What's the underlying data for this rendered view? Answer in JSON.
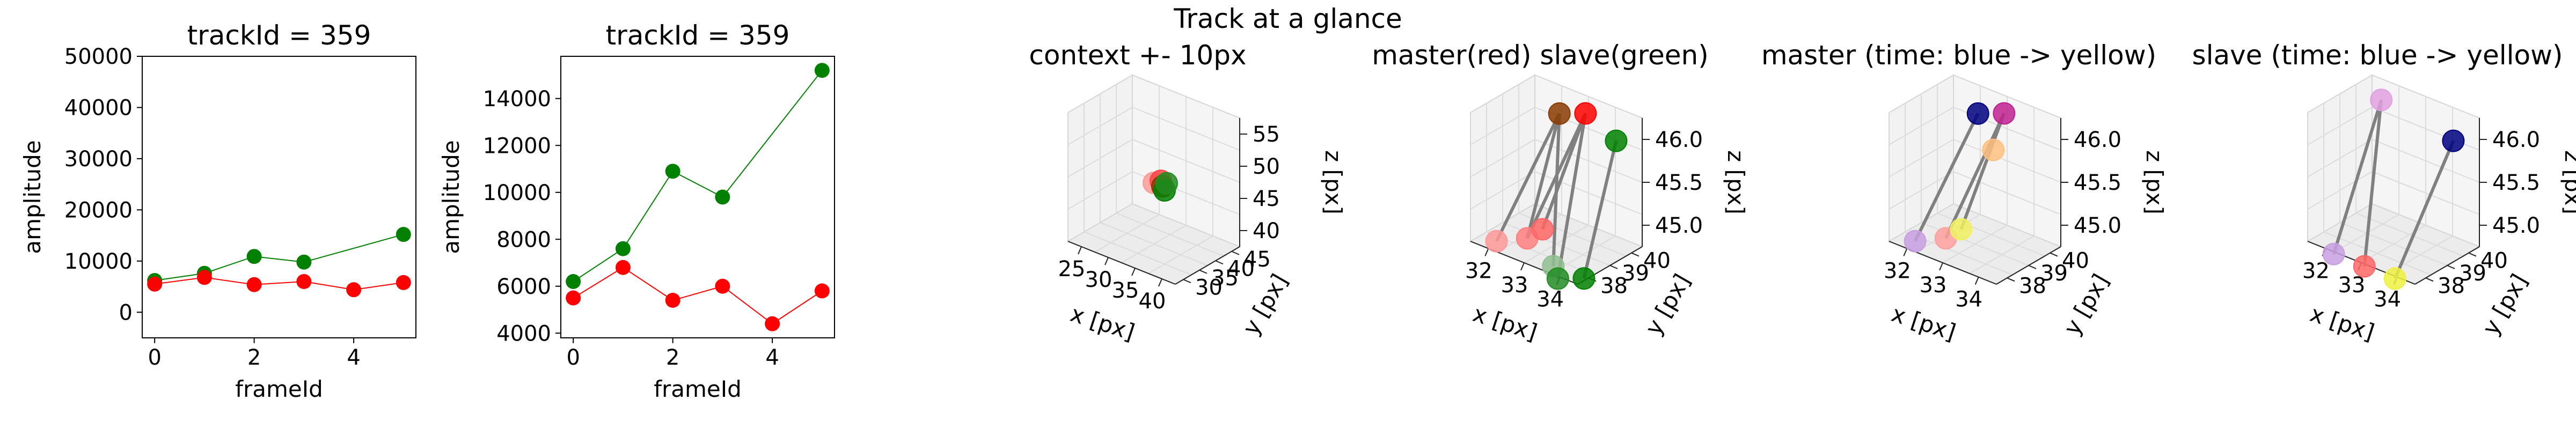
{
  "figure": {
    "suptitle": "Track at a glance"
  },
  "chart_data": [
    {
      "type": "line",
      "title": "trackId = 359",
      "xlabel": "frameId",
      "ylabel": "amplitude",
      "xlim": [
        -0.25,
        5.25
      ],
      "ylim": [
        -5000,
        50000
      ],
      "xticks": [
        "0",
        "2",
        "4"
      ],
      "yticks": [
        "0",
        "10000",
        "20000",
        "30000",
        "40000",
        "50000"
      ],
      "series": [
        {
          "color": "#008000",
          "x": [
            0,
            1,
            2,
            3,
            5
          ],
          "y": [
            6200,
            7600,
            10900,
            9800,
            15200
          ]
        },
        {
          "color": "#ff0000",
          "x": [
            0,
            1,
            2,
            3,
            4,
            5
          ],
          "y": [
            5500,
            6800,
            5400,
            6000,
            4400,
            5800
          ]
        }
      ]
    },
    {
      "type": "line",
      "title": "trackId = 359",
      "xlabel": "frameId",
      "ylabel": "amplitude",
      "xlim": [
        -0.25,
        5.25
      ],
      "ylim": [
        3800,
        15800
      ],
      "xticks": [
        "0",
        "2",
        "4"
      ],
      "yticks": [
        "4000",
        "6000",
        "8000",
        "10000",
        "12000",
        "14000"
      ],
      "series": [
        {
          "color": "#008000",
          "x": [
            0,
            1,
            2,
            3,
            5
          ],
          "y": [
            6200,
            7600,
            10900,
            9800,
            15200
          ]
        },
        {
          "color": "#ff0000",
          "x": [
            0,
            1,
            2,
            3,
            4,
            5
          ],
          "y": [
            5500,
            6800,
            5400,
            6000,
            4400,
            5800
          ]
        }
      ]
    },
    {
      "type": "scatter",
      "title": "context +- 10px",
      "xlabel": "x [px]",
      "ylabel": "y [px]",
      "zlabel": "z [px]",
      "xlim": [
        22,
        42
      ],
      "ylim": [
        28,
        48
      ],
      "zlim": [
        36,
        56
      ],
      "xticks": [
        "25",
        "30",
        "35",
        "40"
      ],
      "yticks": [
        "30",
        "35",
        "40",
        "45"
      ],
      "zticks": [
        "40",
        "45",
        "50",
        "55"
      ],
      "points": [
        {
          "x": 32,
          "y": 38,
          "z": 45.5,
          "color": "#ff9999"
        },
        {
          "x": 33,
          "y": 38.5,
          "z": 46,
          "color": "#ff4444"
        },
        {
          "x": 33,
          "y": 39,
          "z": 45,
          "color": "#8b3a00"
        },
        {
          "x": 34,
          "y": 38,
          "z": 45,
          "color": "#008000"
        },
        {
          "x": 33.5,
          "y": 39.5,
          "z": 45.5,
          "color": "#228b22"
        }
      ]
    },
    {
      "type": "scatter",
      "title": "master(red) slave(green)",
      "xlabel": "x [px]",
      "ylabel": "y [px]",
      "zlabel": "z [px]",
      "xlim": [
        31.5,
        35
      ],
      "ylim": [
        37.5,
        40.5
      ],
      "zlim": [
        44.6,
        46.3
      ],
      "xticks": [
        "32",
        "33",
        "34"
      ],
      "yticks": [
        "38",
        "39",
        "40"
      ],
      "zticks": [
        "45.0",
        "45.5",
        "46.0"
      ],
      "points": [
        {
          "x": 32,
          "y": 38,
          "z": 44.6,
          "color": "#ff9999"
        },
        {
          "x": 33,
          "y": 38,
          "z": 44.8,
          "color": "#ff8080"
        },
        {
          "x": 33.5,
          "y": 38,
          "z": 45.0,
          "color": "#ff6666"
        },
        {
          "x": 33,
          "y": 39.5,
          "z": 46.2,
          "color": "#8b3a00"
        },
        {
          "x": 33.5,
          "y": 40,
          "z": 46.2,
          "color": "#ff0000"
        },
        {
          "x": 33.5,
          "y": 38.5,
          "z": 44.2,
          "color": "#90c090"
        },
        {
          "x": 34,
          "y": 38,
          "z": 44.0,
          "color": "#228b22"
        },
        {
          "x": 34.5,
          "y": 38.5,
          "z": 44.0,
          "color": "#008000"
        },
        {
          "x": 34.5,
          "y": 40,
          "z": 46.0,
          "color": "#008000"
        }
      ],
      "lines": [
        [
          0,
          3
        ],
        [
          1,
          3
        ],
        [
          1,
          4
        ],
        [
          2,
          4
        ],
        [
          5,
          3
        ],
        [
          6,
          4
        ],
        [
          7,
          8
        ]
      ]
    },
    {
      "type": "scatter",
      "title": "master (time: blue -> yellow)",
      "xlabel": "x [px]",
      "ylabel": "y [px]",
      "zlabel": "z [px]",
      "xlim": [
        31.5,
        35
      ],
      "ylim": [
        37.5,
        40.5
      ],
      "zlim": [
        44.6,
        46.3
      ],
      "xticks": [
        "32",
        "33",
        "34"
      ],
      "yticks": [
        "38",
        "39",
        "40"
      ],
      "zticks": [
        "45.0",
        "45.5",
        "46.0"
      ],
      "points": [
        {
          "x": 32,
          "y": 38,
          "z": 44.6,
          "color": "#c8a0e0"
        },
        {
          "x": 33,
          "y": 38,
          "z": 44.8,
          "color": "#ffa0a0"
        },
        {
          "x": 33.5,
          "y": 38,
          "z": 45.0,
          "color": "#f0f060"
        },
        {
          "x": 33,
          "y": 39.5,
          "z": 46.2,
          "color": "#000080"
        },
        {
          "x": 33.5,
          "y": 40,
          "z": 46.2,
          "color": "#c02090"
        },
        {
          "x": 33.5,
          "y": 39.5,
          "z": 45.8,
          "color": "#ffc080"
        }
      ],
      "lines": [
        [
          0,
          3
        ],
        [
          1,
          4
        ],
        [
          2,
          4
        ]
      ]
    },
    {
      "type": "scatter",
      "title": "slave (time: blue -> yellow)",
      "xlabel": "x [px]",
      "ylabel": "y [px]",
      "zlabel": "z [px]",
      "xlim": [
        31.5,
        35
      ],
      "ylim": [
        37.5,
        40.5
      ],
      "zlim": [
        44.6,
        46.3
      ],
      "xticks": [
        "32",
        "33",
        "34"
      ],
      "yticks": [
        "38",
        "39",
        "40"
      ],
      "zticks": [
        "45.0",
        "45.5",
        "46.0"
      ],
      "points": [
        {
          "x": 32,
          "y": 38,
          "z": 44.1,
          "color": "#c8a0e0"
        },
        {
          "x": 33,
          "y": 38,
          "z": 44.0,
          "color": "#ff6666"
        },
        {
          "x": 34,
          "y": 38,
          "z": 44.0,
          "color": "#f0f040"
        },
        {
          "x": 32.5,
          "y": 39.5,
          "z": 46.3,
          "color": "#e0a0e0"
        },
        {
          "x": 34.5,
          "y": 40,
          "z": 46.0,
          "color": "#000080"
        }
      ],
      "lines": [
        [
          0,
          3
        ],
        [
          1,
          3
        ],
        [
          2,
          4
        ]
      ]
    }
  ]
}
